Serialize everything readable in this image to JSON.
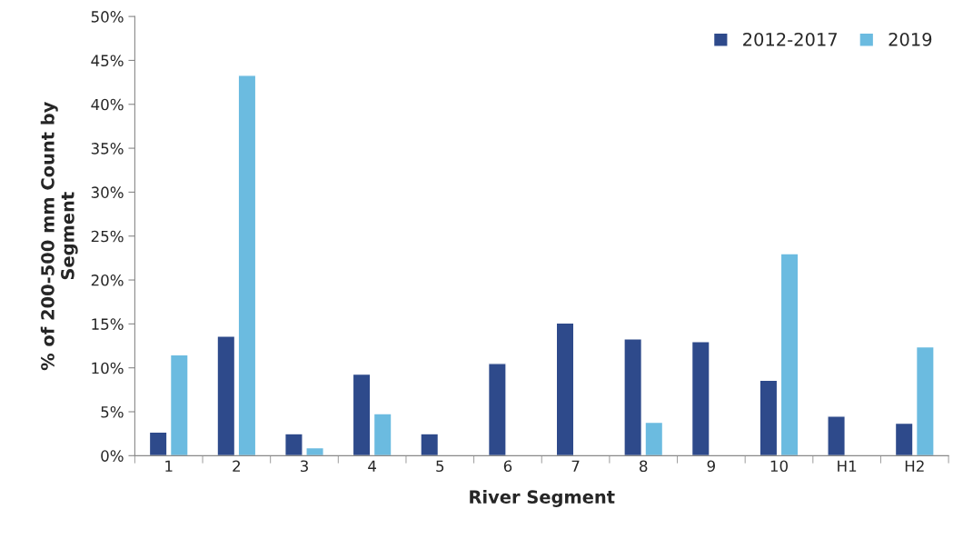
{
  "chart_data": {
    "type": "bar",
    "xlabel": "River Segment",
    "ylabel": "% of 200-500 mm Count by\nSegment",
    "categories": [
      "1",
      "2",
      "3",
      "4",
      "5",
      "6",
      "7",
      "8",
      "9",
      "10",
      "H1",
      "H2"
    ],
    "series": [
      {
        "name": "2012-2017",
        "color": "#2e4a8b",
        "values": [
          2.7,
          13.6,
          2.5,
          9.3,
          2.5,
          10.5,
          15.1,
          13.3,
          13.0,
          8.6,
          4.5,
          3.7
        ]
      },
      {
        "name": "2019",
        "color": "#6bbbe0",
        "values": [
          11.5,
          43.3,
          0.9,
          4.8,
          null,
          null,
          null,
          3.8,
          null,
          23.0,
          null,
          12.4
        ]
      }
    ],
    "ylim": [
      0,
      50
    ],
    "yticks": [
      {
        "value": 0,
        "label": "0%"
      },
      {
        "value": 5,
        "label": "5%"
      },
      {
        "value": 10,
        "label": "10%"
      },
      {
        "value": 15,
        "label": "15%"
      },
      {
        "value": 20,
        "label": "20%"
      },
      {
        "value": 25,
        "label": "25%"
      },
      {
        "value": 30,
        "label": "30%"
      },
      {
        "value": 35,
        "label": "35%"
      },
      {
        "value": 40,
        "label": "40%"
      },
      {
        "value": 45,
        "label": "45%"
      },
      {
        "value": 50,
        "label": "50%"
      }
    ],
    "grid": false,
    "legend": "top right"
  }
}
